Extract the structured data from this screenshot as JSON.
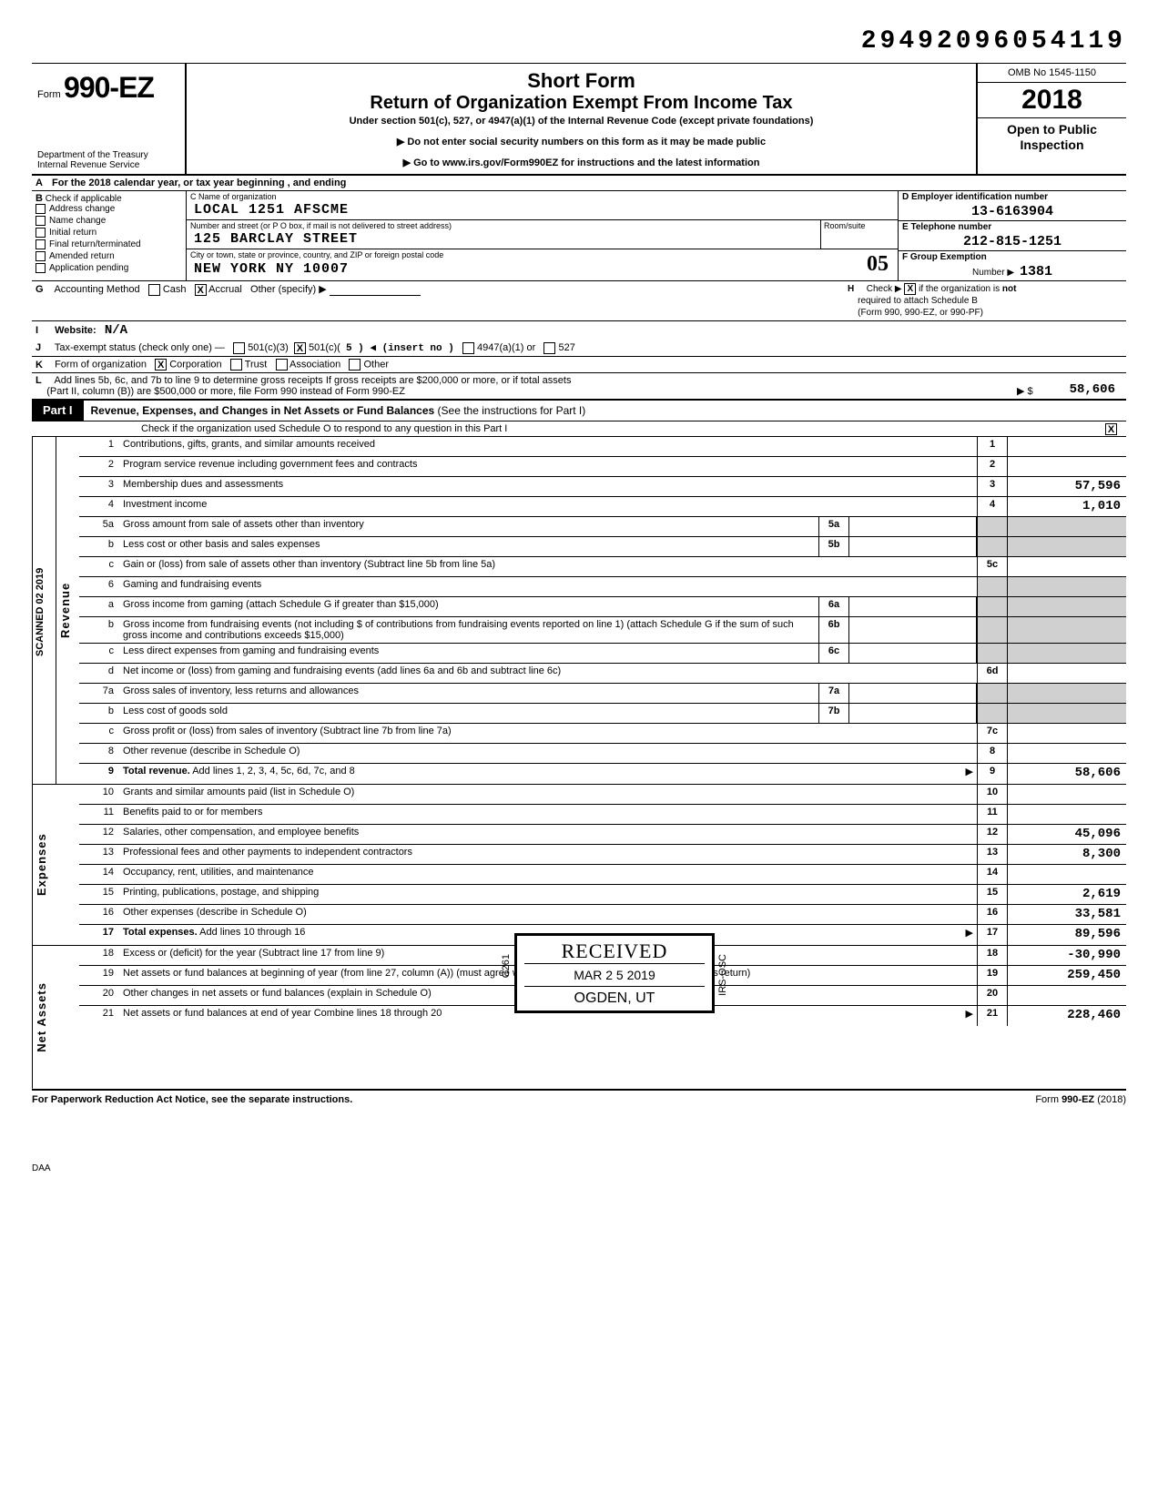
{
  "header_number": "29492096054119",
  "form_prefix": "Form",
  "form_number": "990-EZ",
  "department": "Department of the Treasury\nInternal Revenue Service",
  "title_short": "Short Form",
  "title_main": "Return of Organization Exempt From Income Tax",
  "subtitle": "Under section 501(c), 527, or 4947(a)(1) of the Internal Revenue Code (except private foundations)",
  "instr1": "Do not enter social security numbers on this form as it may be made public",
  "instr2": "Go to www.irs.gov/Form990EZ for instructions and the latest information",
  "omb": "OMB No 1545-1150",
  "year": "2018",
  "inspection": "Open to Public Inspection",
  "lineA": "For the 2018 calendar year, or tax year beginning                                                               , and ending",
  "B": {
    "label": "Check if applicable",
    "items": [
      "Address change",
      "Name change",
      "Initial return",
      "Final return/terminated",
      "Amended return",
      "Application pending"
    ]
  },
  "C": {
    "name_lbl": "C  Name of organization",
    "name_val": "LOCAL 1251 AFSCME",
    "street_lbl": "Number and street (or P O  box, if mail is not delivered to street address)",
    "room_lbl": "Room/suite",
    "street_val": "125 BARCLAY STREET",
    "city_lbl": "City or town, state or province, country, and ZIP or foreign postal code",
    "city_val": "NEW YORK                                    NY  10007",
    "handwritten": "05"
  },
  "D": {
    "ein_lbl": "D  Employer identification number",
    "ein_val": "13-6163904",
    "tel_lbl": "E  Telephone number",
    "tel_val": "212-815-1251",
    "grp_lbl": "F  Group Exemption",
    "grp_num_lbl": "Number  ▶",
    "grp_val": "1381"
  },
  "G": {
    "label": "Accounting Method",
    "opts": [
      "Cash",
      "Accrual",
      "Other (specify) ▶"
    ],
    "checked": "Accrual"
  },
  "H": "Check ▶        if the organization is not required to attach Schedule B (Form 990, 990-EZ, or 990-PF)",
  "I": {
    "label": "Website:",
    "val": "N/A"
  },
  "J": {
    "label": "Tax-exempt status (check only one) —",
    "c501c3": "501(c)(3)",
    "c501c": "501(c)(",
    "insert": "5  ) ◀ (insert no )",
    "a4947": "4947(a)(1) or",
    "c527": "527"
  },
  "K": {
    "label": "Form of organization",
    "opts": [
      "Corporation",
      "Trust",
      "Association",
      "Other"
    ],
    "checked": "Corporation"
  },
  "L": {
    "line1": "Add lines 5b, 6c, and 7b to line 9 to determine gross receipts  If gross receipts are $200,000 or more, or if total assets",
    "line2": "(Part II, column (B)) are $500,000 or more, file Form 990 instead of Form 990-EZ",
    "amt_lbl": "▶  $",
    "amt": "58,606"
  },
  "partI": {
    "tag": "Part I",
    "title": "Revenue, Expenses, and Changes in Net Assets or Fund Balances",
    "note": "(See the instructions for Part I)",
    "sub": "Check if the organization used Schedule O to respond to any question in this Part I",
    "sub_checked": "X"
  },
  "sideScan": "SCANNED 02 2019",
  "sideRevenue": "Revenue",
  "sideExpenses": "Expenses",
  "sideNetAssets": "Net Assets",
  "lines": {
    "1": {
      "n": "1",
      "d": "Contributions, gifts, grants, and similar amounts received",
      "rn": "1",
      "amt": ""
    },
    "2": {
      "n": "2",
      "d": "Program service revenue including government fees and contracts",
      "rn": "2",
      "amt": ""
    },
    "3": {
      "n": "3",
      "d": "Membership dues and assessments",
      "rn": "3",
      "amt": "57,596"
    },
    "4": {
      "n": "4",
      "d": "Investment income",
      "rn": "4",
      "amt": "1,010"
    },
    "5a": {
      "n": "5a",
      "d": "Gross amount from sale of assets other than inventory",
      "mn": "5a"
    },
    "5b": {
      "n": "b",
      "d": "Less  cost or other basis and sales expenses",
      "mn": "5b"
    },
    "5c": {
      "n": "c",
      "d": "Gain or (loss) from sale of assets other than inventory (Subtract line 5b from line 5a)",
      "rn": "5c",
      "amt": ""
    },
    "6": {
      "n": "6",
      "d": "Gaming and fundraising events"
    },
    "6a": {
      "n": "a",
      "d": "Gross income from gaming (attach Schedule G if greater than $15,000)",
      "mn": "6a"
    },
    "6b": {
      "n": "b",
      "d": "Gross income from fundraising events (not including   $                                                     of contributions from fundraising events reported on line 1) (attach Schedule G if the sum of such gross income and contributions exceeds $15,000)",
      "mn": "6b"
    },
    "6c": {
      "n": "c",
      "d": "Less  direct expenses from gaming and fundraising events",
      "mn": "6c"
    },
    "6d": {
      "n": "d",
      "d": "Net income or (loss) from gaming and fundraising events (add lines 6a and 6b and subtract line 6c)",
      "rn": "6d",
      "amt": ""
    },
    "7a": {
      "n": "7a",
      "d": "Gross sales of inventory, less returns and allowances",
      "mn": "7a"
    },
    "7b": {
      "n": "b",
      "d": "Less  cost of goods sold",
      "mn": "7b"
    },
    "7c": {
      "n": "c",
      "d": "Gross profit or (loss) from sales of inventory (Subtract line 7b from line 7a)",
      "rn": "7c",
      "amt": ""
    },
    "8": {
      "n": "8",
      "d": "Other revenue (describe in Schedule O)",
      "rn": "8",
      "amt": ""
    },
    "9": {
      "n": "9",
      "d": "Total revenue. Add lines 1, 2, 3, 4, 5c, 6d, 7c, and 8",
      "rn": "9",
      "amt": "58,606",
      "arrow": true,
      "bold": true
    },
    "10": {
      "n": "10",
      "d": "Grants and similar amounts paid (list in Schedule O)",
      "rn": "10",
      "amt": ""
    },
    "11": {
      "n": "11",
      "d": "Benefits paid to or for members",
      "rn": "11",
      "amt": ""
    },
    "12": {
      "n": "12",
      "d": "Salaries, other compensation, and employee benefits",
      "rn": "12",
      "amt": "45,096"
    },
    "13": {
      "n": "13",
      "d": "Professional fees and other payments to independent contractors",
      "rn": "13",
      "amt": "8,300"
    },
    "14": {
      "n": "14",
      "d": "Occupancy, rent, utilities, and maintenance",
      "rn": "14",
      "amt": ""
    },
    "15": {
      "n": "15",
      "d": "Printing, publications, postage, and shipping",
      "rn": "15",
      "amt": "2,619"
    },
    "16": {
      "n": "16",
      "d": "Other expenses (describe in Schedule O)",
      "rn": "16",
      "amt": "33,581"
    },
    "17": {
      "n": "17",
      "d": "Total expenses. Add lines 10 through 16",
      "rn": "17",
      "amt": "89,596",
      "arrow": true,
      "bold": true
    },
    "18": {
      "n": "18",
      "d": "Excess or (deficit) for the year (Subtract line 17 from line 9)",
      "rn": "18",
      "amt": "-30,990"
    },
    "19": {
      "n": "19",
      "d": "Net assets or fund balances at beginning of year (from line 27, column (A)) (must agree with end-of-year figure reported on prior year's return)",
      "rn": "19",
      "amt": "259,450"
    },
    "20": {
      "n": "20",
      "d": "Other changes in net assets or fund balances (explain in Schedule O)",
      "rn": "20",
      "amt": ""
    },
    "21": {
      "n": "21",
      "d": "Net assets or fund balances at end of year  Combine lines 18 through 20",
      "rn": "21",
      "amt": "228,460",
      "arrow": true
    }
  },
  "stamp": {
    "received": "RECEIVED",
    "date": "MAR 2 5 2019",
    "loc": "OGDEN, UT",
    "side1": "C261",
    "side2": "IRS-OSC"
  },
  "footer": {
    "left": "For Paperwork Reduction Act Notice, see the separate instructions.",
    "right": "Form 990-EZ (2018)"
  },
  "daa": "DAA"
}
